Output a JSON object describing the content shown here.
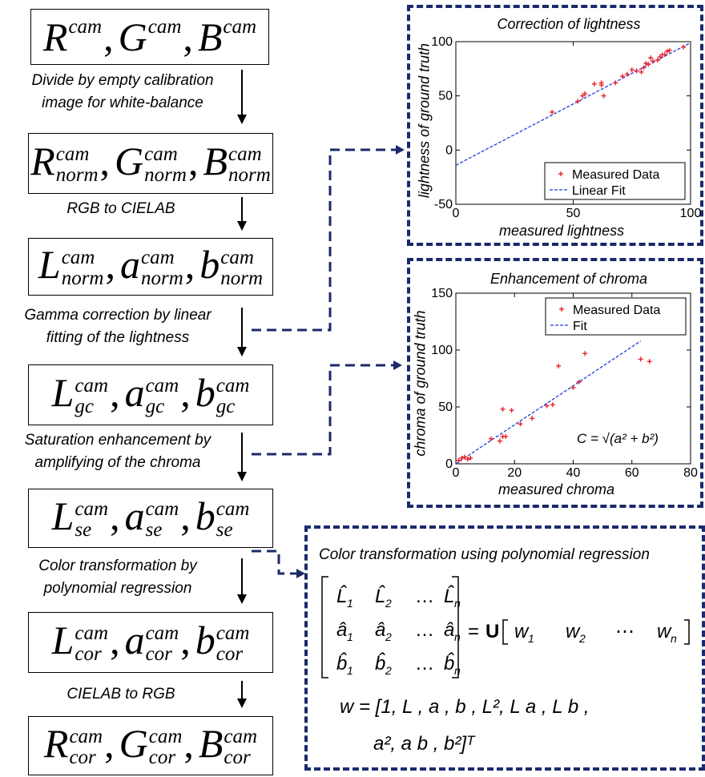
{
  "flow": {
    "box1": {
      "a": "R",
      "b": "G",
      "c": "B",
      "sup": "cam",
      "sub": ""
    },
    "box2": {
      "a": "R",
      "b": "G",
      "c": "B",
      "sup": "cam",
      "sub": "norm"
    },
    "box3": {
      "a": "L",
      "b": "a",
      "c": "b",
      "sup": "cam",
      "sub": "norm"
    },
    "box4": {
      "a": "L",
      "b": "a",
      "c": "b",
      "sup": "cam",
      "sub": "gc"
    },
    "box5": {
      "a": "L",
      "b": "a",
      "c": "b",
      "sup": "cam",
      "sub": "se"
    },
    "box6": {
      "a": "L",
      "b": "a",
      "c": "b",
      "sup": "cam",
      "sub": "cor"
    },
    "box7": {
      "a": "R",
      "b": "G",
      "c": "B",
      "sup": "cam",
      "sub": "cor"
    },
    "step1": [
      "Divide by empty calibration",
      "image for white-balance"
    ],
    "step2": [
      "RGB to CIELAB"
    ],
    "step3": [
      "Gamma correction by linear",
      "fitting of the lightness"
    ],
    "step4": [
      "Saturation enhancement by",
      "amplifying of the chroma"
    ],
    "step5": [
      "Color transformation by",
      "polynomial regression"
    ],
    "step6": [
      "CIELAB to RGB"
    ]
  },
  "chart_data": [
    {
      "type": "scatter",
      "title": "Correction of lightness",
      "xlabel": "measured lightness",
      "ylabel": "lightness of ground truth",
      "xlim": [
        0,
        100
      ],
      "ylim": [
        -50,
        100
      ],
      "xticks": [
        "0",
        "50",
        "100"
      ],
      "yticks": [
        "-50",
        "0",
        "50",
        "100"
      ],
      "legend": [
        "Measured Data",
        "Linear Fit"
      ],
      "legend_position": "bottom-right",
      "series": [
        {
          "name": "Measured Data",
          "color": "#e8232a",
          "x": [
            41,
            52,
            54,
            55,
            59,
            62,
            62,
            63,
            68,
            71,
            73,
            75,
            77,
            79,
            80,
            81,
            82,
            83,
            84,
            86,
            87,
            88,
            89,
            90,
            91,
            97
          ],
          "y": [
            35,
            45,
            50,
            52,
            61,
            62,
            60,
            50,
            62,
            68,
            70,
            74,
            73,
            72,
            76,
            80,
            79,
            85,
            82,
            83,
            86,
            88,
            88,
            91,
            92,
            95
          ]
        },
        {
          "name": "Linear Fit",
          "color": "#1f3fd8",
          "x": [
            0,
            100
          ],
          "y": [
            -14,
            99
          ]
        }
      ]
    },
    {
      "type": "scatter",
      "title": "Enhancement of chroma",
      "xlabel": "measured chroma",
      "ylabel": "chroma of ground truth",
      "xlim": [
        0,
        80
      ],
      "ylim": [
        0,
        150
      ],
      "xticks": [
        "0",
        "20",
        "40",
        "60",
        "80"
      ],
      "yticks": [
        "0",
        "50",
        "100",
        "150"
      ],
      "legend": [
        "Measured Data",
        "Fit"
      ],
      "legend_position": "top-right",
      "annotation": "C = √(a² + b²)",
      "series": [
        {
          "name": "Measured Data",
          "color": "#e8232a",
          "x": [
            1,
            2,
            3,
            4,
            5,
            12,
            15,
            16,
            16,
            17,
            19,
            22,
            26,
            31,
            33,
            35,
            40,
            42,
            44,
            63,
            66
          ],
          "y": [
            3,
            5,
            6,
            4,
            5,
            22,
            20,
            24,
            48,
            24,
            47,
            35,
            40,
            51,
            52,
            86,
            67,
            72,
            97,
            92,
            90
          ]
        },
        {
          "name": "Fit",
          "color": "#1f3fd8",
          "x": [
            0,
            63
          ],
          "y": [
            0,
            108
          ]
        }
      ]
    }
  ],
  "equation": {
    "title": "Color transformation using polynomial regression",
    "u": "U",
    "row1": [
      "L̂",
      "L̂",
      "…",
      "L̂"
    ],
    "row2": [
      "â",
      "â",
      "…",
      "â"
    ],
    "row3": [
      "b̂",
      "b̂",
      "…",
      "b̂"
    ],
    "subs": [
      "1",
      "2",
      "n"
    ],
    "wrow": [
      "w",
      "w",
      "⋯",
      "w"
    ],
    "line1": "w = [1, L , a , b , L², L a , L b ,",
    "line2": "a², a b , b²]ᵀ"
  }
}
